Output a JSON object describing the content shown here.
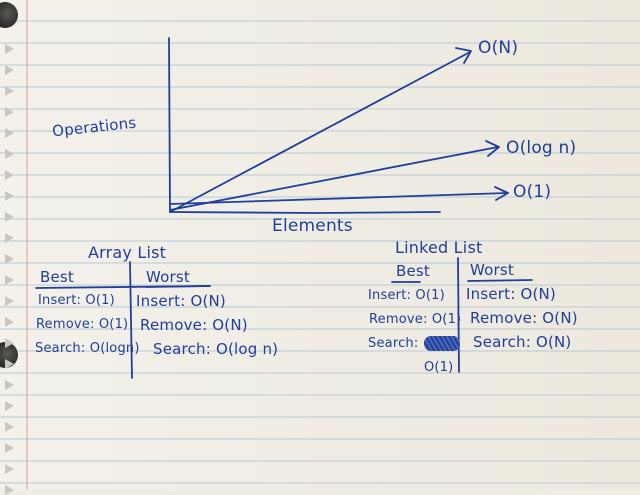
{
  "graph": {
    "ylabel": "Operations",
    "xlabel": "Elements",
    "curves": [
      {
        "name": "O(N)"
      },
      {
        "name": "O(log n)"
      },
      {
        "name": "O(1)"
      }
    ]
  },
  "array_list": {
    "title": "Array List",
    "best_header": "Best",
    "worst_header": "Worst",
    "best": [
      "Insert: O(1)",
      "Remove: O(1)",
      "Search: O(logn)"
    ],
    "worst": [
      "Insert: O(N)",
      "Remove: O(N)",
      "Search: O(log n)"
    ]
  },
  "linked_list": {
    "title": "Linked List",
    "best_header": "Best",
    "worst_header": "Worst",
    "best": [
      "Insert: O(1)",
      "Remove: O(1)",
      "Search:"
    ],
    "search_best_result": "O(1)",
    "worst": [
      "Insert: O(N)",
      "Remove: O(N)",
      "Search: O(N)"
    ]
  },
  "colors": {
    "ink": "#1f3f9a",
    "paper": "#efece4",
    "rule": "#b9c9d6"
  }
}
